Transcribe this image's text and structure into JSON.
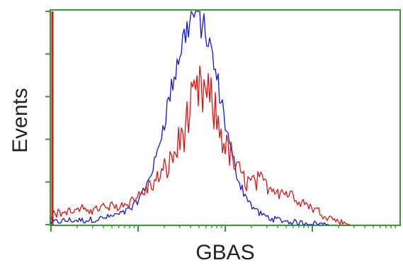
{
  "chart_data": {
    "type": "line",
    "title": "",
    "xlabel": "GBAS",
    "ylabel": "Events",
    "x_scale": "log",
    "grid": false,
    "legend": "none",
    "xlim": [
      0,
      1
    ],
    "ylim": [
      0,
      1
    ],
    "colors": {
      "frame": "#3a9a3a",
      "series_blue": "#1515dd",
      "series_red": "#dd1515"
    },
    "series": [
      {
        "color": "#1515dd",
        "x": [
          0.0,
          0.05,
          0.1,
          0.15,
          0.2,
          0.24,
          0.27,
          0.3,
          0.32,
          0.34,
          0.36,
          0.38,
          0.4,
          0.42,
          0.44,
          0.46,
          0.48,
          0.5,
          0.52,
          0.54,
          0.56,
          0.58,
          0.6,
          0.63,
          0.66,
          0.7,
          0.75,
          0.8
        ],
        "y": [
          0.01,
          0.02,
          0.02,
          0.03,
          0.05,
          0.09,
          0.17,
          0.3,
          0.45,
          0.6,
          0.74,
          0.87,
          0.97,
          1.0,
          0.92,
          0.8,
          0.65,
          0.48,
          0.32,
          0.2,
          0.13,
          0.08,
          0.05,
          0.03,
          0.02,
          0.01,
          0.005,
          0.0
        ]
      },
      {
        "color": "#dd1515",
        "x": [
          0.0,
          0.05,
          0.1,
          0.15,
          0.2,
          0.24,
          0.27,
          0.3,
          0.33,
          0.36,
          0.39,
          0.41,
          0.43,
          0.45,
          0.47,
          0.49,
          0.51,
          0.53,
          0.55,
          0.57,
          0.6,
          0.63,
          0.66,
          0.69,
          0.72,
          0.75,
          0.78,
          0.82,
          0.86
        ],
        "y": [
          0.05,
          0.06,
          0.07,
          0.08,
          0.09,
          0.12,
          0.16,
          0.2,
          0.26,
          0.35,
          0.48,
          0.57,
          0.62,
          0.6,
          0.52,
          0.42,
          0.34,
          0.27,
          0.22,
          0.2,
          0.2,
          0.18,
          0.16,
          0.14,
          0.11,
          0.08,
          0.05,
          0.02,
          0.0
        ]
      }
    ]
  }
}
